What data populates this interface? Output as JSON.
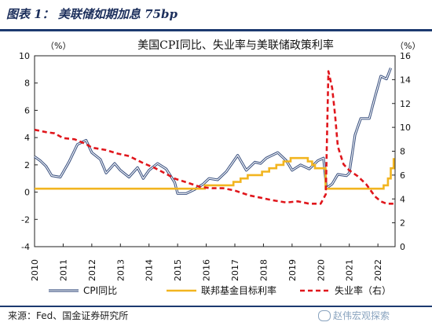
{
  "figure": {
    "title": "图表 1： 美联储如期加息 75bp",
    "source": "来源：Fed、国金证券研究所",
    "watermark": "赵伟宏观探索"
  },
  "colors": {
    "cpi": "#3a5180",
    "fed": "#f2b520",
    "unemp": "#e0161c",
    "rule": "#1c3a70"
  },
  "chart_data": {
    "type": "line",
    "title": "美国CPI同比、失业率与美联储政策利率",
    "left_unit": "（%）",
    "right_unit": "（%）",
    "y_left_lim": [
      -4,
      10
    ],
    "y_left_ticks": [
      -4,
      -2,
      0,
      2,
      4,
      6,
      8,
      10
    ],
    "y_right_lim": [
      0,
      16
    ],
    "y_right_ticks": [
      0,
      2,
      4,
      6,
      8,
      10,
      12,
      14,
      16
    ],
    "x_lim": [
      2010,
      2022.6
    ],
    "x_ticks": [
      "2010",
      "2011",
      "2012",
      "2013",
      "2014",
      "2015",
      "2016",
      "2017",
      "2018",
      "2019",
      "2020",
      "2021",
      "2022"
    ],
    "grid": false,
    "legend_position": "bottom",
    "series": [
      {
        "name": "CPI同比",
        "axis": "left",
        "style": "double-line",
        "points": [
          [
            2010.0,
            2.6
          ],
          [
            2010.2,
            2.3
          ],
          [
            2010.4,
            1.9
          ],
          [
            2010.6,
            1.2
          ],
          [
            2010.9,
            1.1
          ],
          [
            2011.2,
            2.2
          ],
          [
            2011.5,
            3.5
          ],
          [
            2011.8,
            3.8
          ],
          [
            2012.0,
            2.9
          ],
          [
            2012.3,
            2.4
          ],
          [
            2012.5,
            1.4
          ],
          [
            2012.8,
            2.1
          ],
          [
            2013.0,
            1.6
          ],
          [
            2013.3,
            1.1
          ],
          [
            2013.6,
            1.8
          ],
          [
            2013.8,
            1.0
          ],
          [
            2014.0,
            1.6
          ],
          [
            2014.3,
            2.1
          ],
          [
            2014.6,
            1.7
          ],
          [
            2014.9,
            0.7
          ],
          [
            2015.0,
            -0.1
          ],
          [
            2015.3,
            -0.1
          ],
          [
            2015.6,
            0.2
          ],
          [
            2015.9,
            0.6
          ],
          [
            2016.1,
            1.0
          ],
          [
            2016.4,
            0.9
          ],
          [
            2016.7,
            1.5
          ],
          [
            2016.9,
            2.1
          ],
          [
            2017.1,
            2.7
          ],
          [
            2017.4,
            1.6
          ],
          [
            2017.7,
            2.2
          ],
          [
            2017.9,
            2.1
          ],
          [
            2018.1,
            2.5
          ],
          [
            2018.5,
            2.9
          ],
          [
            2018.8,
            2.3
          ],
          [
            2019.0,
            1.6
          ],
          [
            2019.3,
            2.0
          ],
          [
            2019.6,
            1.7
          ],
          [
            2019.9,
            2.3
          ],
          [
            2020.1,
            2.5
          ],
          [
            2020.2,
            0.3
          ],
          [
            2020.4,
            0.6
          ],
          [
            2020.6,
            1.3
          ],
          [
            2020.9,
            1.2
          ],
          [
            2021.0,
            1.4
          ],
          [
            2021.2,
            4.2
          ],
          [
            2021.4,
            5.4
          ],
          [
            2021.7,
            5.4
          ],
          [
            2021.9,
            7.0
          ],
          [
            2022.1,
            8.5
          ],
          [
            2022.3,
            8.3
          ],
          [
            2022.45,
            9.1
          ]
        ]
      },
      {
        "name": "联邦基金目标利率",
        "axis": "left",
        "style": "solid",
        "points": [
          [
            2010.0,
            0.25
          ],
          [
            2015.95,
            0.25
          ],
          [
            2015.95,
            0.5
          ],
          [
            2016.95,
            0.5
          ],
          [
            2016.95,
            0.75
          ],
          [
            2017.2,
            0.75
          ],
          [
            2017.2,
            1.0
          ],
          [
            2017.45,
            1.0
          ],
          [
            2017.45,
            1.25
          ],
          [
            2017.95,
            1.25
          ],
          [
            2017.95,
            1.5
          ],
          [
            2018.2,
            1.5
          ],
          [
            2018.2,
            1.75
          ],
          [
            2018.45,
            1.75
          ],
          [
            2018.45,
            2.0
          ],
          [
            2018.7,
            2.0
          ],
          [
            2018.7,
            2.25
          ],
          [
            2018.95,
            2.25
          ],
          [
            2018.95,
            2.5
          ],
          [
            2019.55,
            2.5
          ],
          [
            2019.55,
            2.25
          ],
          [
            2019.7,
            2.25
          ],
          [
            2019.7,
            2.0
          ],
          [
            2019.8,
            2.0
          ],
          [
            2019.8,
            1.75
          ],
          [
            2020.17,
            1.75
          ],
          [
            2020.17,
            0.25
          ],
          [
            2022.2,
            0.25
          ],
          [
            2022.2,
            0.5
          ],
          [
            2022.35,
            0.5
          ],
          [
            2022.35,
            1.0
          ],
          [
            2022.45,
            1.0
          ],
          [
            2022.45,
            1.75
          ],
          [
            2022.55,
            1.75
          ],
          [
            2022.55,
            2.5
          ]
        ]
      },
      {
        "name": "失业率（右）",
        "axis": "right",
        "style": "dashed",
        "points": [
          [
            2010.0,
            9.8
          ],
          [
            2010.4,
            9.6
          ],
          [
            2010.7,
            9.5
          ],
          [
            2011.0,
            9.1
          ],
          [
            2011.4,
            9.0
          ],
          [
            2011.8,
            8.6
          ],
          [
            2012.0,
            8.3
          ],
          [
            2012.5,
            8.1
          ],
          [
            2012.9,
            7.8
          ],
          [
            2013.3,
            7.6
          ],
          [
            2013.8,
            7.0
          ],
          [
            2014.2,
            6.6
          ],
          [
            2014.6,
            6.1
          ],
          [
            2014.9,
            5.7
          ],
          [
            2015.3,
            5.4
          ],
          [
            2015.8,
            5.0
          ],
          [
            2016.2,
            4.9
          ],
          [
            2016.6,
            4.9
          ],
          [
            2017.0,
            4.7
          ],
          [
            2017.5,
            4.3
          ],
          [
            2017.9,
            4.1
          ],
          [
            2018.3,
            3.9
          ],
          [
            2018.8,
            3.7
          ],
          [
            2019.2,
            3.8
          ],
          [
            2019.6,
            3.6
          ],
          [
            2020.0,
            3.6
          ],
          [
            2020.18,
            4.4
          ],
          [
            2020.27,
            14.7
          ],
          [
            2020.4,
            13.3
          ],
          [
            2020.5,
            11.1
          ],
          [
            2020.6,
            8.4
          ],
          [
            2020.8,
            6.9
          ],
          [
            2021.0,
            6.4
          ],
          [
            2021.3,
            5.9
          ],
          [
            2021.6,
            5.2
          ],
          [
            2021.9,
            4.2
          ],
          [
            2022.1,
            3.8
          ],
          [
            2022.3,
            3.6
          ],
          [
            2022.55,
            3.6
          ]
        ]
      }
    ]
  }
}
